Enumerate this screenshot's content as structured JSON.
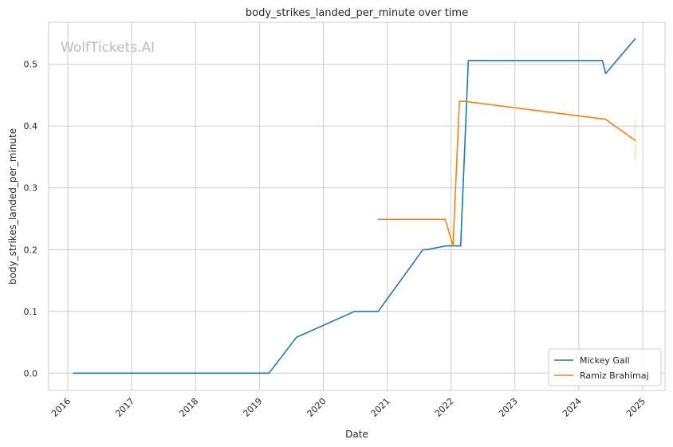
{
  "chart_data": {
    "type": "line",
    "title": "body_strikes_landed_per_minute over time",
    "xlabel": "Date",
    "ylabel": "body_strikes_landed_per_minute",
    "watermark": "WolfTickets.AI",
    "xlim": [
      2015.7,
      2025.35
    ],
    "ylim": [
      -0.028,
      0.568
    ],
    "x_ticks": [
      2016,
      2017,
      2018,
      2019,
      2020,
      2021,
      2022,
      2023,
      2024,
      2025
    ],
    "x_tick_labels": [
      "2016",
      "2017",
      "2018",
      "2019",
      "2020",
      "2021",
      "2022",
      "2023",
      "2024",
      "2025"
    ],
    "y_ticks": [
      0.0,
      0.1,
      0.2,
      0.3,
      0.4,
      0.5
    ],
    "y_tick_labels": [
      "0.0",
      "0.1",
      "0.2",
      "0.3",
      "0.4",
      "0.5"
    ],
    "grid": true,
    "legend_position": "bottom-right",
    "series": [
      {
        "name": "Mickey Gall",
        "color": "#1f77b4",
        "points": [
          [
            2016.09,
            0.0
          ],
          [
            2019.15,
            0.0
          ],
          [
            2019.58,
            0.058
          ],
          [
            2020.49,
            0.1
          ],
          [
            2020.86,
            0.1
          ],
          [
            2021.56,
            0.2
          ],
          [
            2021.62,
            0.2
          ],
          [
            2021.92,
            0.206
          ],
          [
            2022.15,
            0.206
          ],
          [
            2022.27,
            0.506
          ],
          [
            2024.37,
            0.506
          ],
          [
            2024.42,
            0.485
          ],
          [
            2024.88,
            0.541
          ]
        ]
      },
      {
        "name": "Ramiz Brahimaj",
        "color": "#ff7f0e",
        "points": [
          [
            2020.86,
            0.249
          ],
          [
            2021.91,
            0.249
          ],
          [
            2022.03,
            0.206
          ],
          [
            2022.13,
            0.44
          ],
          [
            2022.22,
            0.44
          ],
          [
            2024.42,
            0.411
          ],
          [
            2024.88,
            0.377
          ]
        ],
        "error_band": {
          "x": 2024.88,
          "low": 0.343,
          "high": 0.412
        }
      }
    ]
  }
}
